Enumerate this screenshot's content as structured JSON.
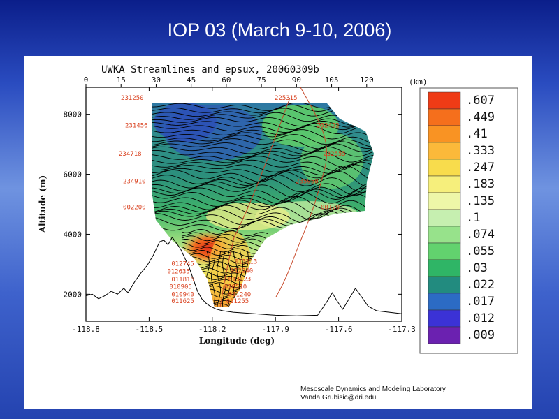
{
  "slide": {
    "title": "IOP 03 (March 9-10, 2006)"
  },
  "credit": {
    "line1": "Mesoscale Dynamics and Modeling Laboratory",
    "line2": "Vanda.Grubisic@dri.edu"
  },
  "chart_data": {
    "type": "contour",
    "title": "UWKA Streamlines and epsux, 20060309b",
    "xlabel": "Longitude (deg)",
    "ylabel": "Altitude (m)",
    "top_axis_unit": "(km)",
    "xlim": [
      -118.8,
      -117.3
    ],
    "ylim": [
      1100,
      8900
    ],
    "x_ticks": [
      {
        "value": -118.8,
        "label": "-118.8"
      },
      {
        "value": -118.5,
        "label": "-118.5"
      },
      {
        "value": -118.2,
        "label": "-118.2"
      },
      {
        "value": -117.9,
        "label": "-117.9"
      },
      {
        "value": -117.6,
        "label": "-117.6"
      },
      {
        "value": -117.3,
        "label": "-117.3"
      }
    ],
    "top_ticks": [
      {
        "value": 0,
        "label": "0"
      },
      {
        "value": 15,
        "label": "15"
      },
      {
        "value": 30,
        "label": "30"
      },
      {
        "value": 45,
        "label": "45"
      },
      {
        "value": 60,
        "label": "60"
      },
      {
        "value": 75,
        "label": "75"
      },
      {
        "value": 90,
        "label": "90"
      },
      {
        "value": 105,
        "label": "105"
      },
      {
        "value": 120,
        "label": "120"
      }
    ],
    "y_ticks": [
      {
        "value": 2000,
        "label": "2000"
      },
      {
        "value": 4000,
        "label": "4000"
      },
      {
        "value": 6000,
        "label": "6000"
      },
      {
        "value": 8000,
        "label": "8000"
      }
    ],
    "colorbar": [
      {
        "label": ".607",
        "color": "#ef3b16"
      },
      {
        "label": ".449",
        "color": "#f56f1c"
      },
      {
        "label": ".41",
        "color": "#f99323"
      },
      {
        "label": ".333",
        "color": "#fbb93a"
      },
      {
        "label": ".247",
        "color": "#f8dc4c"
      },
      {
        "label": ".183",
        "color": "#f6ef7c"
      },
      {
        "label": ".135",
        "color": "#eef7a8"
      },
      {
        "label": ".1",
        "color": "#c6efb0"
      },
      {
        "label": ".074",
        "color": "#97e28b"
      },
      {
        "label": ".055",
        "color": "#62d26e"
      },
      {
        "label": ".03",
        "color": "#2fb566"
      },
      {
        "label": ".022",
        "color": "#228b7f"
      },
      {
        "label": ".017",
        "color": "#2c6bc4"
      },
      {
        "label": ".012",
        "color": "#3b32d6"
      },
      {
        "label": ".009",
        "color": "#6b21b0"
      }
    ],
    "terrain": [
      [
        -118.8,
        1950
      ],
      [
        -118.77,
        2000
      ],
      [
        -118.74,
        1850
      ],
      [
        -118.71,
        1950
      ],
      [
        -118.68,
        2100
      ],
      [
        -118.65,
        2000
      ],
      [
        -118.62,
        2200
      ],
      [
        -118.6,
        2050
      ],
      [
        -118.57,
        2400
      ],
      [
        -118.54,
        2700
      ],
      [
        -118.51,
        2950
      ],
      [
        -118.48,
        3300
      ],
      [
        -118.45,
        3750
      ],
      [
        -118.43,
        3800
      ],
      [
        -118.41,
        3650
      ],
      [
        -118.39,
        3900
      ],
      [
        -118.37,
        3700
      ],
      [
        -118.35,
        3500
      ],
      [
        -118.33,
        3200
      ],
      [
        -118.31,
        2900
      ],
      [
        -118.29,
        2500
      ],
      [
        -118.27,
        2100
      ],
      [
        -118.25,
        1850
      ],
      [
        -118.23,
        1700
      ],
      [
        -118.21,
        1600
      ],
      [
        -118.18,
        1500
      ],
      [
        -118.15,
        1450
      ],
      [
        -118.1,
        1400
      ],
      [
        -118.0,
        1350
      ],
      [
        -117.9,
        1300
      ],
      [
        -117.8,
        1280
      ],
      [
        -117.7,
        1300
      ],
      [
        -117.66,
        1700
      ],
      [
        -117.63,
        2050
      ],
      [
        -117.61,
        1800
      ],
      [
        -117.58,
        1500
      ],
      [
        -117.55,
        1850
      ],
      [
        -117.52,
        2200
      ],
      [
        -117.49,
        1900
      ],
      [
        -117.46,
        1600
      ],
      [
        -117.42,
        1450
      ],
      [
        -117.36,
        1400
      ],
      [
        -117.3,
        1350
      ]
    ],
    "flight_labels": [
      {
        "text": "231250",
        "lon": -118.58,
        "alt": 8480
      },
      {
        "text": "231456",
        "lon": -118.56,
        "alt": 7560
      },
      {
        "text": "234718",
        "lon": -118.59,
        "alt": 6620
      },
      {
        "text": "234910",
        "lon": -118.57,
        "alt": 5700
      },
      {
        "text": "002200",
        "lon": -118.57,
        "alt": 4840
      },
      {
        "text": "225315",
        "lon": -117.85,
        "alt": 8480
      },
      {
        "text": "232422",
        "lon": -117.65,
        "alt": 7560
      },
      {
        "text": "232555",
        "lon": -117.62,
        "alt": 6620
      },
      {
        "text": "235950",
        "lon": -117.75,
        "alt": 5700
      },
      {
        "text": "00120",
        "lon": -117.64,
        "alt": 4840
      },
      {
        "text": "012745",
        "lon": -118.34,
        "alt": 2950
      },
      {
        "text": "012635",
        "lon": -118.36,
        "alt": 2700
      },
      {
        "text": "011816",
        "lon": -118.34,
        "alt": 2430
      },
      {
        "text": "010905",
        "lon": -118.35,
        "alt": 2180
      },
      {
        "text": "010940",
        "lon": -118.34,
        "alt": 1930
      },
      {
        "text": "011625",
        "lon": -118.34,
        "alt": 1700
      },
      {
        "text": "013113",
        "lon": -118.04,
        "alt": 3020
      },
      {
        "text": "012240",
        "lon": -118.06,
        "alt": 2720
      },
      {
        "text": "013123",
        "lon": -118.07,
        "alt": 2440
      },
      {
        "text": "010510",
        "lon": -118.09,
        "alt": 2180
      },
      {
        "text": "011240",
        "lon": -118.07,
        "alt": 1930
      },
      {
        "text": "011255",
        "lon": -118.08,
        "alt": 1700
      }
    ]
  }
}
